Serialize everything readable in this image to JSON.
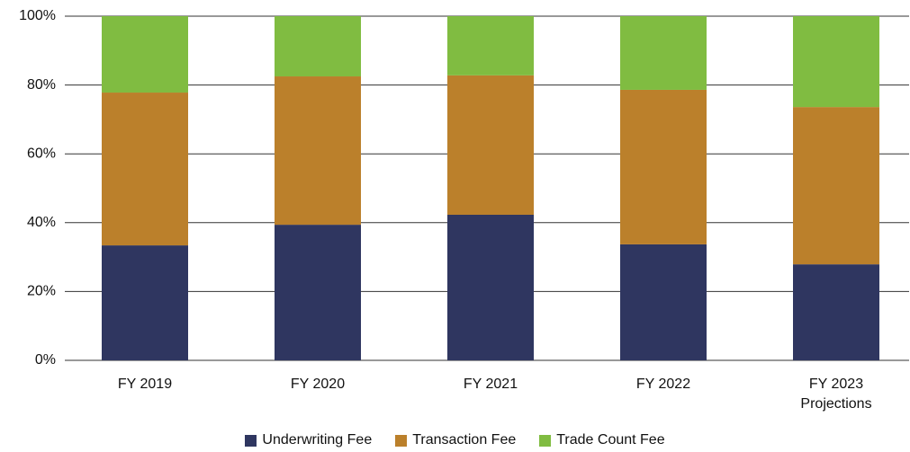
{
  "chart_data": {
    "type": "stacked_bar",
    "categories": [
      "FY 2019",
      "FY 2020",
      "FY 2021",
      "FY 2022",
      "FY 2023\nProjections"
    ],
    "series": [
      {
        "name": "Underwriting Fee",
        "color": "#2f3660",
        "values": [
          33.4,
          39.4,
          42.3,
          33.7,
          27.9
        ]
      },
      {
        "name": "Transaction Fee",
        "color": "#bb802b",
        "values": [
          44.4,
          43.1,
          40.5,
          44.9,
          45.7
        ]
      },
      {
        "name": "Trade Count Fee",
        "color": "#80bc41",
        "values": [
          22.2,
          17.5,
          17.2,
          21.4,
          26.4
        ]
      }
    ],
    "ylim": [
      0,
      100
    ],
    "yticks": [
      {
        "value": 0,
        "label": "0%"
      },
      {
        "value": 20,
        "label": "20%"
      },
      {
        "value": 40,
        "label": "40%"
      },
      {
        "value": 60,
        "label": "60%"
      },
      {
        "value": 80,
        "label": "80%"
      },
      {
        "value": 100,
        "label": "100%"
      }
    ],
    "grid": true,
    "legend": "bottom"
  }
}
